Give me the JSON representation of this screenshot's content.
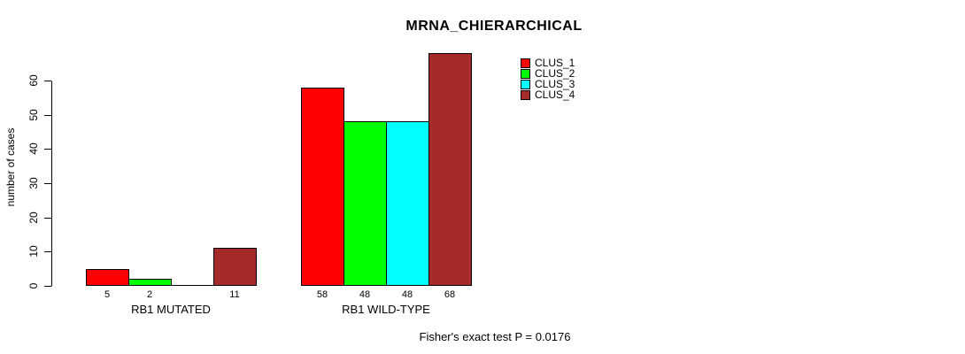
{
  "chart_data": {
    "type": "bar",
    "title": "MRNA_CHIERARCHICAL",
    "subtitle": "Fisher's exact test P = 0.0176",
    "ylabel": "number of cases",
    "xlabel": "",
    "categories": [
      "RB1 MUTATED",
      "RB1 WILD-TYPE"
    ],
    "series": [
      {
        "name": "CLUS_1",
        "color": "#FF0000",
        "values": [
          5,
          58
        ]
      },
      {
        "name": "CLUS_2",
        "color": "#00FF00",
        "values": [
          2,
          48
        ]
      },
      {
        "name": "CLUS_3",
        "color": "#00FFFF",
        "values": [
          0,
          48
        ]
      },
      {
        "name": "CLUS_4",
        "color": "#A52A2A",
        "values": [
          11,
          68
        ]
      }
    ],
    "bar_value_labels": [
      [
        "5",
        "2",
        "",
        "11"
      ],
      [
        "58",
        "48",
        "48",
        "68"
      ]
    ],
    "yticks": [
      0,
      10,
      20,
      30,
      40,
      50,
      60
    ],
    "ylim": [
      0,
      60
    ],
    "grid": false,
    "legend_position": "top-right",
    "axis_color": "#000000",
    "text_color": "#000000",
    "background_color": "#FFFFFF"
  }
}
